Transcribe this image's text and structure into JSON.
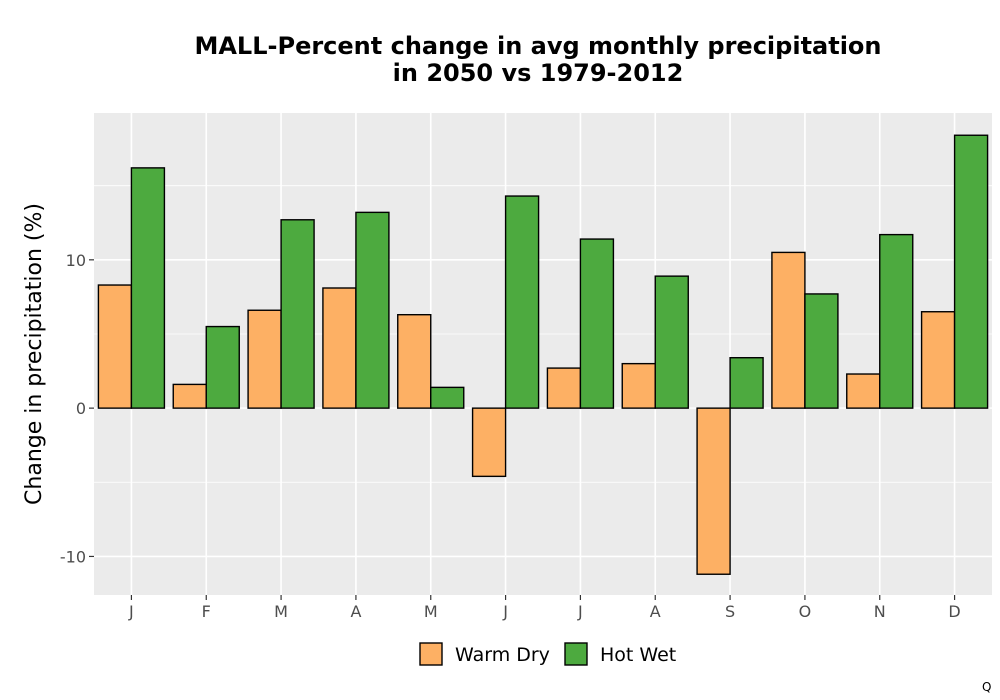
{
  "chart_data": {
    "type": "bar",
    "title_line1": "MALL-Percent change in avg monthly precipitation",
    "title_line2": "in 2050 vs 1979-2012",
    "xlabel": "",
    "ylabel": "Change in precipitation (%)",
    "categories": [
      "J",
      "F",
      "M",
      "A",
      "M",
      "J",
      "J",
      "A",
      "S",
      "O",
      "N",
      "D"
    ],
    "series": [
      {
        "name": "Warm Dry",
        "color": "#FDB064",
        "values": [
          8.3,
          1.6,
          6.6,
          8.1,
          6.3,
          -4.6,
          2.7,
          3.0,
          -11.2,
          10.5,
          2.3,
          6.5
        ]
      },
      {
        "name": "Hot Wet",
        "color": "#4DAA3F",
        "values": [
          16.2,
          5.5,
          12.7,
          13.2,
          1.4,
          14.3,
          11.4,
          8.9,
          3.4,
          7.7,
          11.7,
          18.4
        ]
      }
    ],
    "yticks": [
      -10,
      0,
      10
    ],
    "ytick_labels": [
      "-10",
      "0",
      "10"
    ],
    "ylim": [
      -12.6,
      19.9
    ],
    "grid": true,
    "panel_background": "#EBEBEB",
    "gridline_color": "#FFFFFF",
    "bar_outline_color": "#000000",
    "legend_position": "bottom"
  },
  "corner_mark": "Q"
}
